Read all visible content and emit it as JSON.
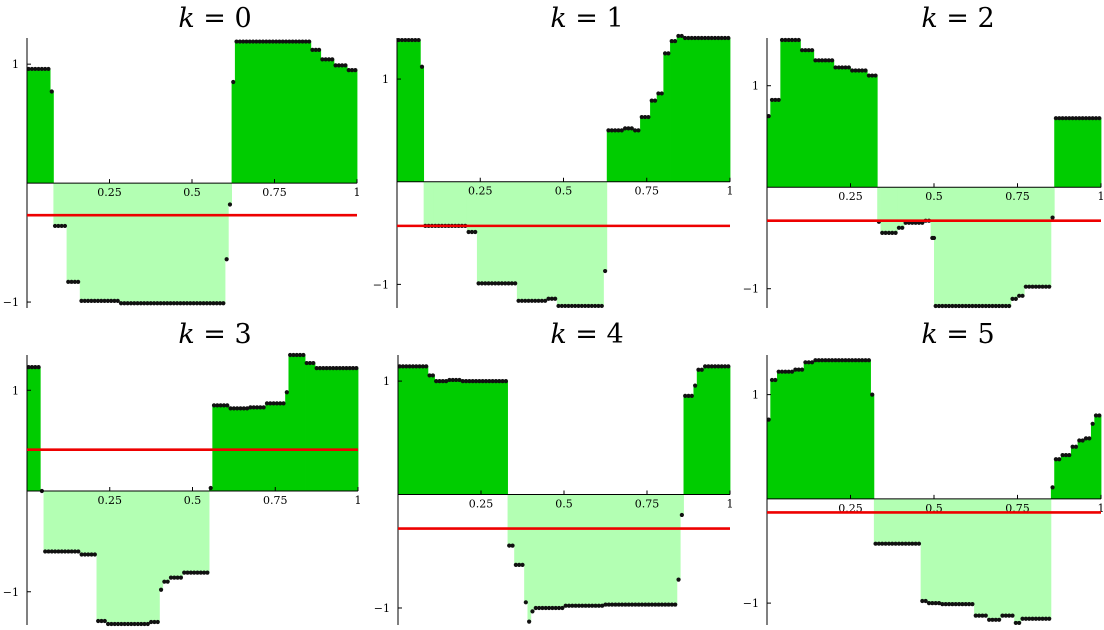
{
  "figure": {
    "colors": {
      "positive_fill": "#00cc00",
      "negative_fill": "#b3ffb3",
      "threshold_line": "#ee0000",
      "points": "#111111",
      "axes": "#000000"
    }
  },
  "chart_data": [
    {
      "type": "area",
      "title": "k = 0",
      "xlim": [
        0,
        1
      ],
      "ylim": [
        -1.05,
        1.22
      ],
      "x_ticks": [
        {
          "value": 0.25,
          "label": "0.25"
        },
        {
          "value": 0.5,
          "label": "0.5"
        },
        {
          "value": 0.75,
          "label": "0.75"
        },
        {
          "value": 1,
          "label": "1"
        }
      ],
      "y_ticks": [
        {
          "value": 1,
          "label": "1"
        },
        {
          "value": -1,
          "label": "−1"
        }
      ],
      "threshold": -0.27,
      "steps": [
        [
          0.0,
          0.07,
          0.96
        ],
        [
          0.07,
          0.08,
          0.77
        ],
        [
          0.08,
          0.12,
          -0.36
        ],
        [
          0.12,
          0.16,
          -0.83
        ],
        [
          0.16,
          0.2,
          -0.99
        ],
        [
          0.2,
          0.28,
          -0.99
        ],
        [
          0.28,
          0.54,
          -1.01
        ],
        [
          0.54,
          0.6,
          -1.01
        ],
        [
          0.6,
          0.61,
          -0.64
        ],
        [
          0.61,
          0.62,
          -0.18
        ],
        [
          0.62,
          0.63,
          0.85
        ],
        [
          0.63,
          0.86,
          1.19
        ],
        [
          0.86,
          0.89,
          1.12
        ],
        [
          0.89,
          0.93,
          1.04
        ],
        [
          0.93,
          0.97,
          0.99
        ],
        [
          0.97,
          1.0,
          0.95
        ]
      ]
    },
    {
      "type": "area",
      "title": "k = 1",
      "xlim": [
        0,
        1
      ],
      "ylim": [
        -1.23,
        1.4
      ],
      "x_ticks": [
        {
          "value": 0.25,
          "label": "0.25"
        },
        {
          "value": 0.5,
          "label": "0.5"
        },
        {
          "value": 0.75,
          "label": "0.75"
        },
        {
          "value": 1,
          "label": "1"
        }
      ],
      "y_ticks": [
        {
          "value": 1,
          "label": "1"
        },
        {
          "value": -1,
          "label": "−1"
        }
      ],
      "threshold": -0.43,
      "steps": [
        [
          0.0,
          0.07,
          1.38
        ],
        [
          0.07,
          0.08,
          1.12
        ],
        [
          0.08,
          0.1,
          -0.43
        ],
        [
          0.1,
          0.11,
          -0.43
        ],
        [
          0.11,
          0.21,
          -0.43
        ],
        [
          0.21,
          0.24,
          -0.49
        ],
        [
          0.24,
          0.36,
          -0.99
        ],
        [
          0.36,
          0.45,
          -1.16
        ],
        [
          0.45,
          0.48,
          -1.14
        ],
        [
          0.48,
          0.62,
          -1.21
        ],
        [
          0.62,
          0.63,
          -0.87
        ],
        [
          0.63,
          0.68,
          0.5
        ],
        [
          0.68,
          0.71,
          0.52
        ],
        [
          0.71,
          0.73,
          0.5
        ],
        [
          0.73,
          0.76,
          0.63
        ],
        [
          0.76,
          0.78,
          0.79
        ],
        [
          0.78,
          0.8,
          0.86
        ],
        [
          0.8,
          0.82,
          1.25
        ],
        [
          0.82,
          0.84,
          1.37
        ],
        [
          0.84,
          0.86,
          1.42
        ],
        [
          0.86,
          1.0,
          1.4
        ]
      ]
    },
    {
      "type": "area",
      "title": "k = 2",
      "xlim": [
        0,
        1
      ],
      "ylim": [
        -1.19,
        1.47
      ],
      "x_ticks": [
        {
          "value": 0.25,
          "label": "0.25"
        },
        {
          "value": 0.5,
          "label": "0.5"
        },
        {
          "value": 0.75,
          "label": "0.75"
        },
        {
          "value": 1,
          "label": "1"
        }
      ],
      "y_ticks": [
        {
          "value": 1,
          "label": "1"
        },
        {
          "value": -1,
          "label": "−1"
        }
      ],
      "threshold": -0.33,
      "steps": [
        [
          0.0,
          0.01,
          0.7
        ],
        [
          0.01,
          0.04,
          0.86
        ],
        [
          0.04,
          0.1,
          1.45
        ],
        [
          0.1,
          0.14,
          1.35
        ],
        [
          0.14,
          0.2,
          1.25
        ],
        [
          0.2,
          0.25,
          1.18
        ],
        [
          0.25,
          0.3,
          1.15
        ],
        [
          0.3,
          0.33,
          1.1
        ],
        [
          0.33,
          0.34,
          -0.34
        ],
        [
          0.34,
          0.39,
          -0.45
        ],
        [
          0.39,
          0.41,
          -0.4
        ],
        [
          0.41,
          0.44,
          -0.35
        ],
        [
          0.44,
          0.47,
          -0.35
        ],
        [
          0.47,
          0.49,
          -0.33
        ],
        [
          0.49,
          0.5,
          -0.5
        ],
        [
          0.5,
          0.5,
          -0.5
        ],
        [
          0.5,
          0.51,
          -1.17
        ],
        [
          0.51,
          0.73,
          -1.17
        ],
        [
          0.73,
          0.75,
          -1.1
        ],
        [
          0.75,
          0.77,
          -1.07
        ],
        [
          0.77,
          0.85,
          -0.98
        ],
        [
          0.85,
          0.86,
          -0.3
        ],
        [
          0.86,
          0.87,
          0.68
        ],
        [
          0.87,
          1.0,
          0.68
        ]
      ]
    },
    {
      "type": "area",
      "title": "k = 3",
      "xlim": [
        0,
        1
      ],
      "ylim": [
        -1.33,
        1.35
      ],
      "x_ticks": [
        {
          "value": 0.25,
          "label": "0.25"
        },
        {
          "value": 0.5,
          "label": "0.5"
        },
        {
          "value": 0.75,
          "label": "0.75"
        },
        {
          "value": 1,
          "label": "1"
        }
      ],
      "y_ticks": [
        {
          "value": 1,
          "label": "1"
        },
        {
          "value": -1,
          "label": "−1"
        }
      ],
      "threshold": 0.41,
      "steps": [
        [
          0.0,
          0.04,
          1.23
        ],
        [
          0.04,
          0.05,
          0.0
        ],
        [
          0.05,
          0.16,
          -0.6
        ],
        [
          0.16,
          0.21,
          -0.63
        ],
        [
          0.21,
          0.24,
          -1.29
        ],
        [
          0.24,
          0.37,
          -1.32
        ],
        [
          0.37,
          0.4,
          -1.3
        ],
        [
          0.4,
          0.41,
          -0.98
        ],
        [
          0.41,
          0.43,
          -0.9
        ],
        [
          0.43,
          0.47,
          -0.86
        ],
        [
          0.47,
          0.55,
          -0.81
        ],
        [
          0.55,
          0.56,
          0.03
        ],
        [
          0.56,
          0.61,
          0.85
        ],
        [
          0.61,
          0.67,
          0.82
        ],
        [
          0.67,
          0.72,
          0.83
        ],
        [
          0.72,
          0.78,
          0.87
        ],
        [
          0.78,
          0.79,
          0.98
        ],
        [
          0.79,
          0.84,
          1.35
        ],
        [
          0.84,
          0.87,
          1.27
        ],
        [
          0.87,
          1.0,
          1.22
        ]
      ]
    },
    {
      "type": "area",
      "title": "k = 4",
      "xlim": [
        0,
        1
      ],
      "ylim": [
        -1.15,
        1.23
      ],
      "x_ticks": [
        {
          "value": 0.25,
          "label": "0.25"
        },
        {
          "value": 0.5,
          "label": "0.5"
        },
        {
          "value": 0.75,
          "label": "0.75"
        },
        {
          "value": 1,
          "label": "1"
        }
      ],
      "y_ticks": [
        {
          "value": 1,
          "label": "1"
        },
        {
          "value": -1,
          "label": "−1"
        }
      ],
      "threshold": -0.3,
      "steps": [
        [
          0.0,
          0.09,
          1.13
        ],
        [
          0.09,
          0.11,
          1.05
        ],
        [
          0.11,
          0.15,
          1.0
        ],
        [
          0.15,
          0.19,
          1.01
        ],
        [
          0.19,
          0.21,
          1.0
        ],
        [
          0.21,
          0.33,
          1.0
        ],
        [
          0.33,
          0.35,
          -0.45
        ],
        [
          0.35,
          0.38,
          -0.62
        ],
        [
          0.38,
          0.39,
          -0.95
        ],
        [
          0.39,
          0.4,
          -1.12
        ],
        [
          0.4,
          0.41,
          -1.03
        ],
        [
          0.41,
          0.5,
          -1.0
        ],
        [
          0.5,
          0.62,
          -0.98
        ],
        [
          0.62,
          0.84,
          -0.97
        ],
        [
          0.84,
          0.85,
          -0.75
        ],
        [
          0.85,
          0.86,
          -0.18
        ],
        [
          0.86,
          0.89,
          0.87
        ],
        [
          0.89,
          0.9,
          0.96
        ],
        [
          0.9,
          0.92,
          1.1
        ],
        [
          0.92,
          1.0,
          1.13
        ]
      ]
    },
    {
      "type": "area",
      "title": "k = 5",
      "xlim": [
        0,
        1
      ],
      "ylim": [
        -1.21,
        1.38
      ],
      "x_ticks": [
        {
          "value": 0.25,
          "label": "0.25"
        },
        {
          "value": 0.5,
          "label": "0.5"
        },
        {
          "value": 0.75,
          "label": "0.75"
        },
        {
          "value": 1,
          "label": "1"
        }
      ],
      "y_ticks": [
        {
          "value": 1,
          "label": "1"
        },
        {
          "value": -1,
          "label": "−1"
        }
      ],
      "threshold": -0.13,
      "steps": [
        [
          0.0,
          0.01,
          0.76
        ],
        [
          0.01,
          0.03,
          1.14
        ],
        [
          0.03,
          0.08,
          1.22
        ],
        [
          0.08,
          0.11,
          1.24
        ],
        [
          0.11,
          0.14,
          1.31
        ],
        [
          0.14,
          0.31,
          1.33
        ],
        [
          0.31,
          0.32,
          1.0
        ],
        [
          0.32,
          0.46,
          -0.43
        ],
        [
          0.46,
          0.48,
          -0.98
        ],
        [
          0.48,
          0.52,
          -1.0
        ],
        [
          0.52,
          0.62,
          -1.01
        ],
        [
          0.62,
          0.66,
          -1.12
        ],
        [
          0.66,
          0.7,
          -1.16
        ],
        [
          0.7,
          0.74,
          -1.12
        ],
        [
          0.74,
          0.76,
          -1.19
        ],
        [
          0.76,
          0.85,
          -1.15
        ],
        [
          0.85,
          0.86,
          0.11
        ],
        [
          0.86,
          0.88,
          0.38
        ],
        [
          0.88,
          0.91,
          0.42
        ],
        [
          0.91,
          0.93,
          0.5
        ],
        [
          0.93,
          0.95,
          0.56
        ],
        [
          0.95,
          0.97,
          0.58
        ],
        [
          0.97,
          0.98,
          0.72
        ],
        [
          0.98,
          1.0,
          0.8
        ]
      ]
    }
  ]
}
